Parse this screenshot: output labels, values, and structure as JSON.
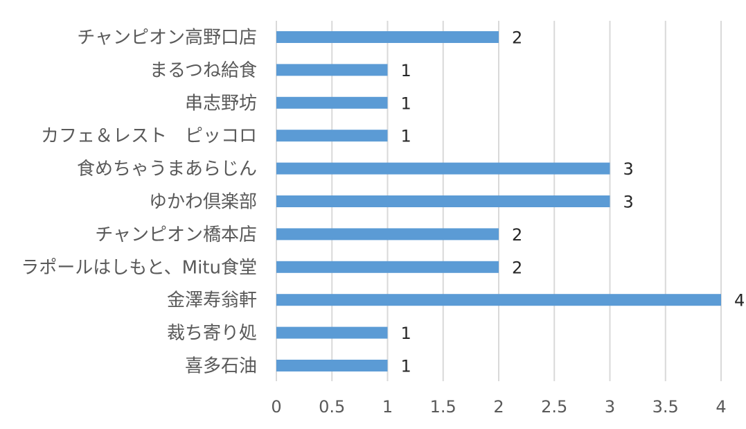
{
  "chart_data": {
    "type": "bar",
    "orientation": "horizontal",
    "categories": [
      "チャンピオン高野口店",
      "まるつね給食",
      "串志野坊",
      "カフェ＆レスト　ピッコロ",
      "食めちゃうまあらじん",
      "ゆかわ倶楽部",
      "チャンピオン橋本店",
      "ラポールはしもと、Mitu食堂",
      "金澤寿翁軒",
      "裁ち寄り処",
      "喜多石油"
    ],
    "values": [
      2,
      1,
      1,
      1,
      3,
      3,
      2,
      2,
      4,
      1,
      1
    ],
    "xlim": [
      0,
      4
    ],
    "xticks": [
      "0",
      "0.5",
      "1",
      "1.5",
      "2",
      "2.5",
      "3",
      "3.5",
      "4"
    ],
    "title": "",
    "xlabel": "",
    "ylabel": "",
    "grid": "vertical",
    "legend": "none",
    "data_labels": true,
    "bar_color": "#5b9bd5"
  }
}
